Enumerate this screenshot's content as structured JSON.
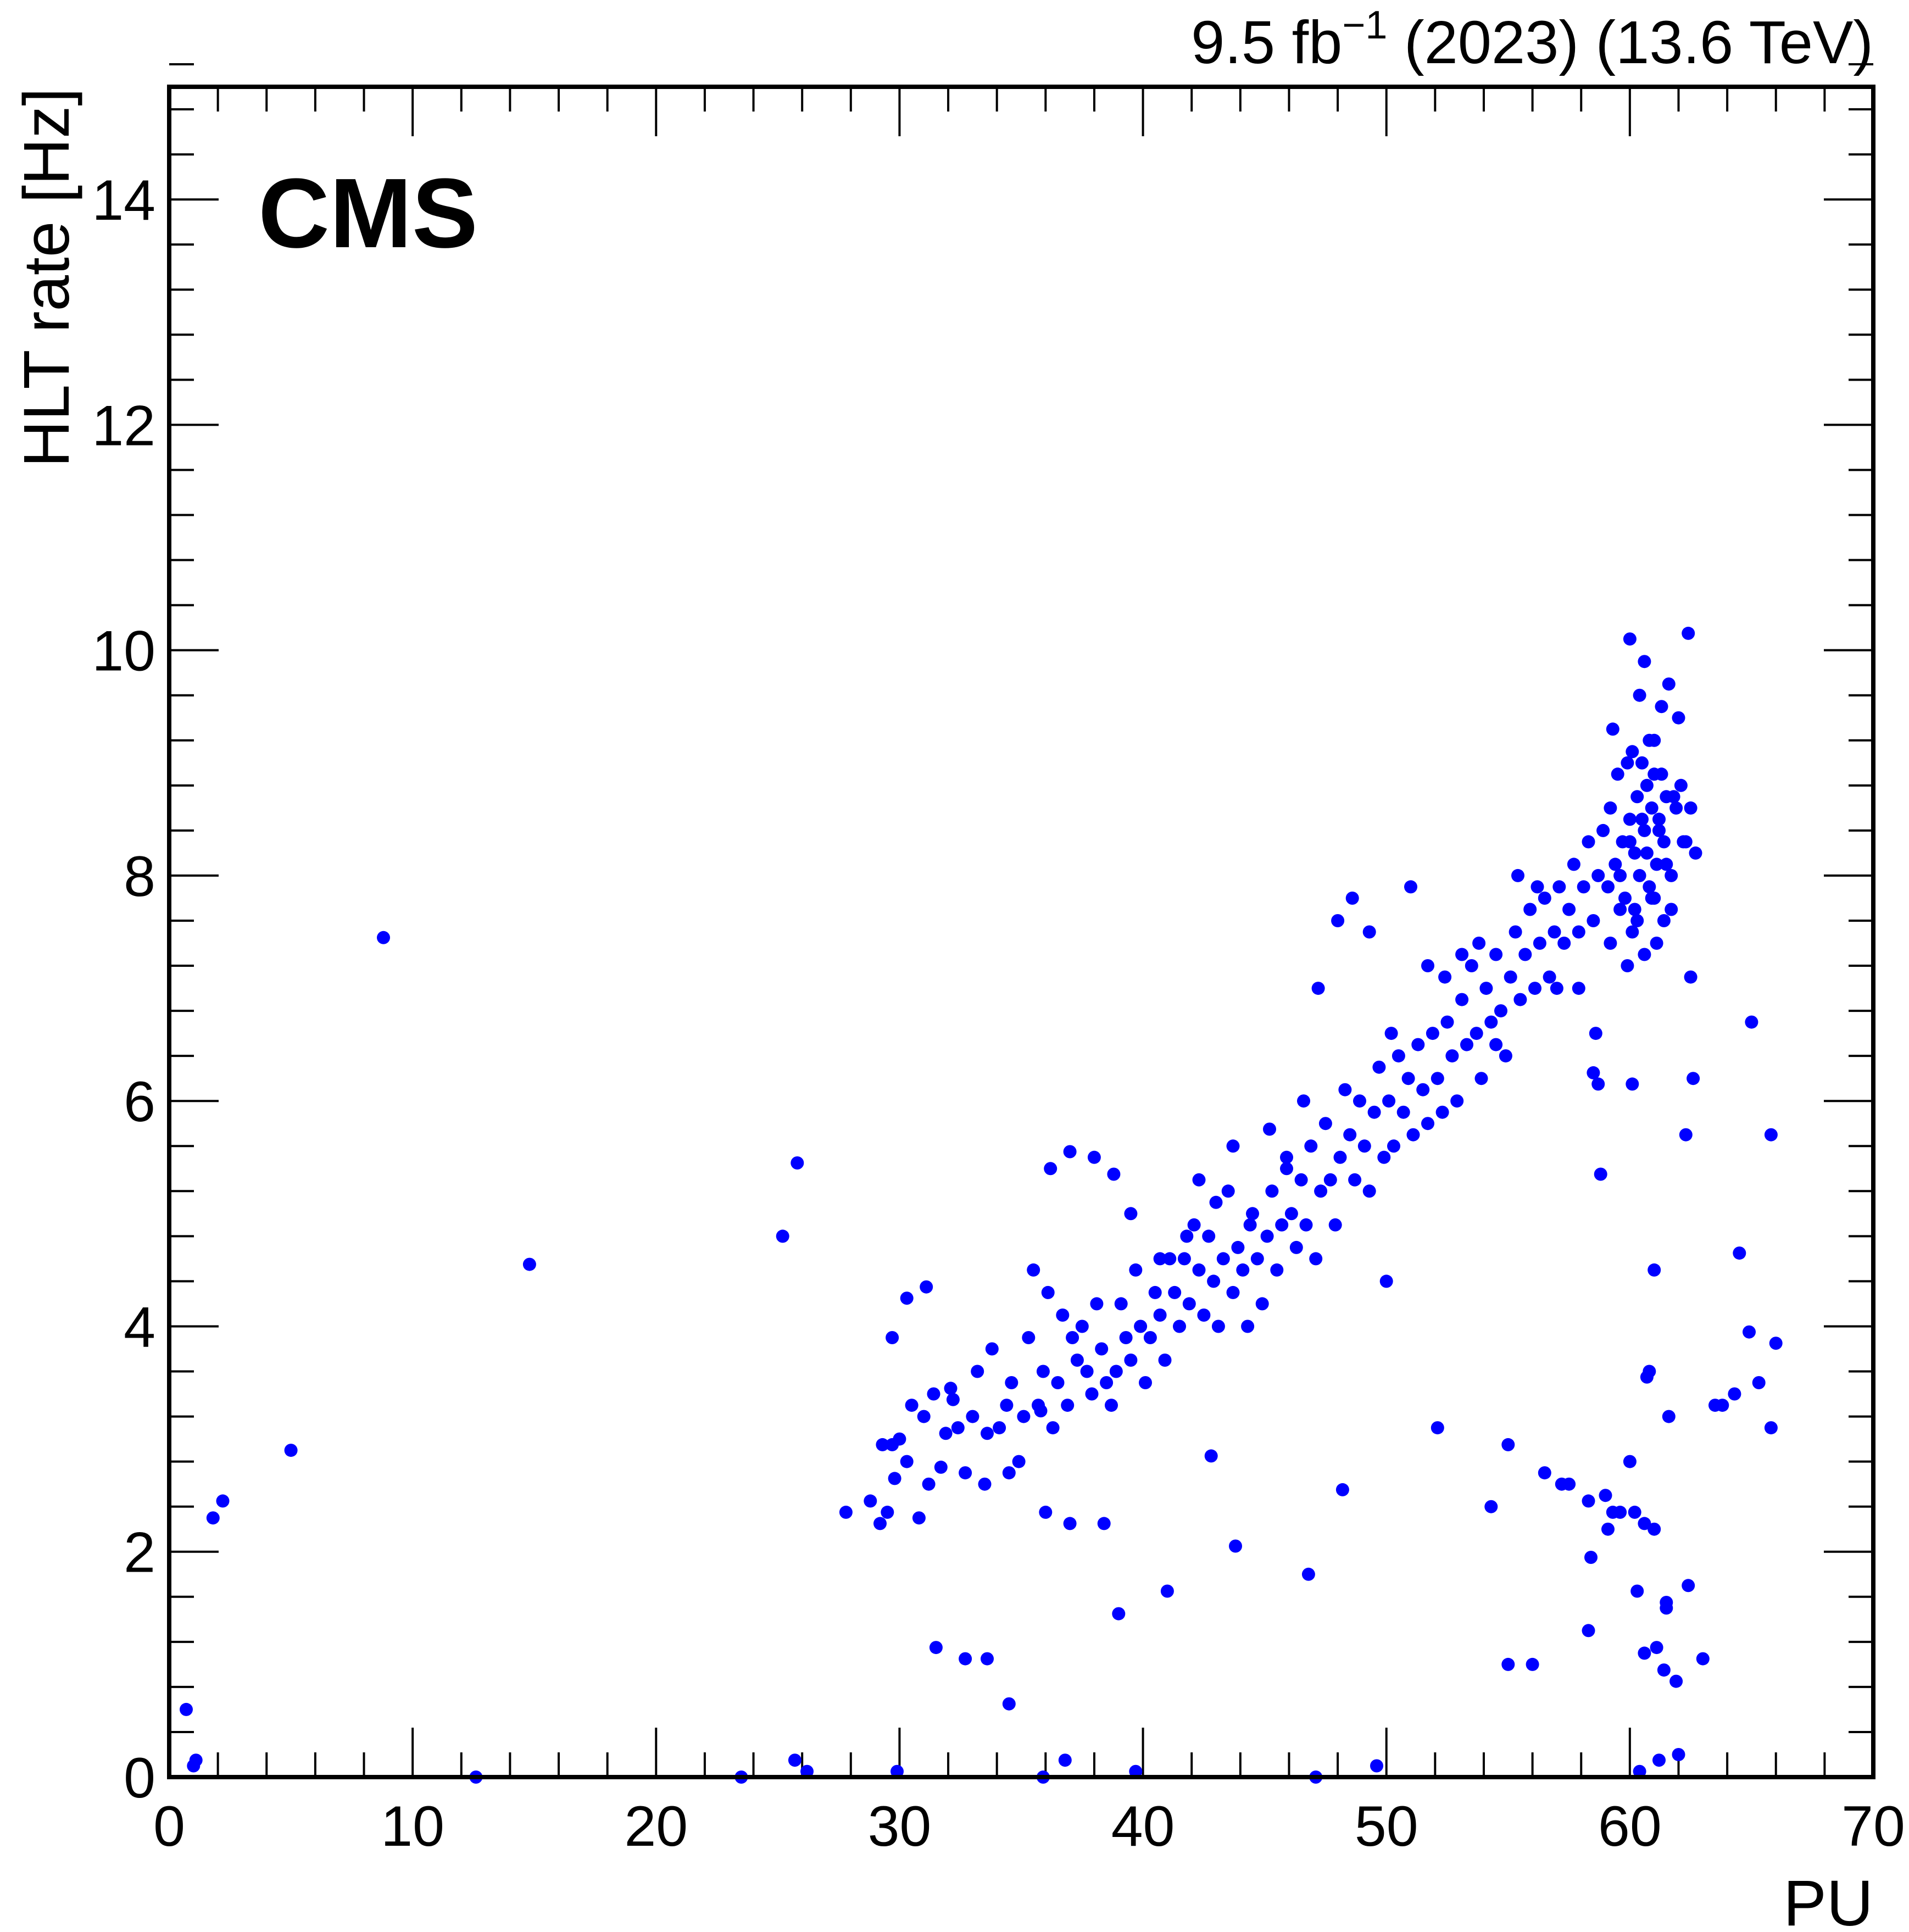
{
  "chart_data": {
    "type": "scatter",
    "experiment_label": "CMS",
    "lumi_label": {
      "main": "9.5 fb",
      "sup": "−1",
      "rest": " (2023) (13.6 TeV)"
    },
    "xlabel": "PU",
    "ylabel": "HLT rate [Hz]",
    "xlim": [
      0,
      70
    ],
    "ylim": [
      0,
      15
    ],
    "xticks": [
      0,
      10,
      20,
      30,
      40,
      50,
      60,
      70
    ],
    "yticks": [
      0,
      2,
      4,
      6,
      8,
      10,
      12,
      14
    ],
    "grid": false,
    "marker_color": "#0000ff",
    "series": [
      {
        "x": [
          0.7,
          1.0,
          1.1,
          1.8,
          2.2,
          5.0,
          8.8,
          14.8,
          25.2,
          25.8,
          27.8,
          28.8,
          29.2,
          29.3,
          29.5,
          29.7,
          29.8,
          30.0,
          30.3,
          30.5,
          30.8,
          31.0,
          31.2,
          31.4,
          31.7,
          31.9,
          32.1,
          32.4,
          32.7,
          33.0,
          33.2,
          33.5,
          33.8,
          34.1,
          34.4,
          34.6,
          34.9,
          35.1,
          35.3,
          35.5,
          35.7,
          35.9,
          36.1,
          36.3,
          36.5,
          36.7,
          36.9,
          37.1,
          37.3,
          37.5,
          37.7,
          37.9,
          38.1,
          38.3,
          38.5,
          38.7,
          38.9,
          39.1,
          39.3,
          39.5,
          39.7,
          39.9,
          40.1,
          40.3,
          40.5,
          40.7,
          40.9,
          41.1,
          41.3,
          41.5,
          41.7,
          41.9,
          42.1,
          42.3,
          42.5,
          42.7,
          42.9,
          43.1,
          43.3,
          43.5,
          43.7,
          43.9,
          44.1,
          44.3,
          44.5,
          44.7,
          44.9,
          45.1,
          45.3,
          45.5,
          45.7,
          45.9,
          46.1,
          46.3,
          46.5,
          46.7,
          46.9,
          47.1,
          47.3,
          47.5,
          47.7,
          47.9,
          48.1,
          48.3,
          48.5,
          48.7,
          48.9,
          49.1,
          49.3,
          49.5,
          49.7,
          49.9,
          50.1,
          50.3,
          50.5,
          50.7,
          50.9,
          51.1,
          51.3,
          51.5,
          51.7,
          51.9,
          52.1,
          52.3,
          52.5,
          52.7,
          52.9,
          53.1,
          53.3,
          53.5,
          53.7,
          53.9,
          54.1,
          54.3,
          54.5,
          54.7,
          54.9,
          55.1,
          55.3,
          55.5,
          55.7,
          55.9,
          56.1,
          56.3,
          56.5,
          56.7,
          56.9,
          57.1,
          57.3,
          57.5,
          57.7,
          57.9,
          58.1,
          58.3,
          58.5,
          58.7,
          58.9,
          59.1,
          59.2,
          59.4,
          59.5,
          59.7,
          59.8,
          60.0,
          60.1,
          60.2,
          60.3,
          60.4,
          60.5,
          60.6,
          60.7,
          60.8,
          60.9,
          61.0,
          61.1,
          61.2,
          61.3,
          61.4,
          61.5,
          61.7,
          61.9,
          62.1,
          62.3,
          62.5,
          62.7,
          59.3,
          59.9,
          60.0,
          60.4,
          60.6,
          60.8,
          61.0,
          61.3,
          61.6,
          62.0,
          62.4,
          59.6,
          60.0,
          60.2,
          60.5,
          60.7,
          61.0,
          61.2,
          61.5,
          61.8,
          62.2,
          59.2,
          59.6,
          59.9,
          60.1,
          60.3,
          60.6,
          60.9,
          61.1,
          61.4,
          61.7,
          29.7,
          30.3,
          31.1,
          32.2,
          33.6,
          34.5,
          35.8,
          36.2,
          37.0,
          38.0,
          38.8,
          39.5,
          40.7,
          41.8,
          42.3,
          43.0,
          43.7,
          44.4,
          45.2,
          45.9,
          46.6,
          47.2,
          48.0,
          48.6,
          49.3,
          50.2,
          51.0,
          51.7,
          52.4,
          53.1,
          53.8,
          54.5,
          55.4,
          56.2,
          57.0,
          57.9,
          58.6,
          31.5,
          32.7,
          33.6,
          34.5,
          36.0,
          37.0,
          38.4,
          39.0,
          41.0,
          42.8,
          43.8,
          46.8,
          48.2,
          50.0,
          52.1,
          54.3,
          55.0,
          56.5,
          57.2,
          58.3,
          59.0,
          60.3,
          60.6,
          61.1,
          61.5,
          62.4,
          63.0,
          63.8,
          64.3,
          64.9,
          65.3,
          65.8,
          66.0,
          58.4,
          58.8,
          59.1,
          59.3,
          59.6,
          60.0,
          60.2,
          60.6,
          60.7,
          61.0,
          61.4,
          61.6,
          61.9,
          62.3,
          62.6,
          12.6,
          23.5,
          25.7,
          26.2,
          29.9,
          35.9,
          36.8,
          39.7,
          47.1,
          49.6,
          60.4,
          61.2,
          62.0,
          55.0,
          56.0,
          57.5,
          58.3,
          58.5,
          58.7,
          60.1,
          60.8,
          61.0,
          61.5,
          62.5,
          63.5,
          65.0,
          64.5,
          65.8
        ],
        "y": [
          0.6,
          0.1,
          0.15,
          2.3,
          2.45,
          2.9,
          7.45,
          4.55,
          4.8,
          5.45,
          2.35,
          2.45,
          2.25,
          2.95,
          2.35,
          3.9,
          2.65,
          3.0,
          2.8,
          3.3,
          2.3,
          3.2,
          2.6,
          3.4,
          2.75,
          3.05,
          3.45,
          3.1,
          2.7,
          3.2,
          3.6,
          2.6,
          3.8,
          3.1,
          3.3,
          3.5,
          2.8,
          3.2,
          3.9,
          4.5,
          3.3,
          3.6,
          4.3,
          3.1,
          3.5,
          4.1,
          3.3,
          3.9,
          3.7,
          4.0,
          3.6,
          3.4,
          4.2,
          3.8,
          3.5,
          3.3,
          3.6,
          4.2,
          3.9,
          3.7,
          4.5,
          4.0,
          3.5,
          3.9,
          4.3,
          4.1,
          3.7,
          4.6,
          4.3,
          4.0,
          4.6,
          4.2,
          4.9,
          4.5,
          4.1,
          4.8,
          4.4,
          4.0,
          4.6,
          5.2,
          4.3,
          4.7,
          4.5,
          4.0,
          5.0,
          4.6,
          4.2,
          4.8,
          5.2,
          4.5,
          4.9,
          5.4,
          5.0,
          4.7,
          5.3,
          4.9,
          5.6,
          4.6,
          5.2,
          5.8,
          5.3,
          4.9,
          5.5,
          6.1,
          5.7,
          5.3,
          6.0,
          5.6,
          5.2,
          5.9,
          6.3,
          5.5,
          6.0,
          5.6,
          6.4,
          5.9,
          6.2,
          5.7,
          6.5,
          6.1,
          5.8,
          6.6,
          6.2,
          5.9,
          6.7,
          6.4,
          6.0,
          6.9,
          6.5,
          7.2,
          6.6,
          6.2,
          7.0,
          6.7,
          7.3,
          6.8,
          6.4,
          7.1,
          7.5,
          6.9,
          7.3,
          7.7,
          7.0,
          7.4,
          7.8,
          7.1,
          7.5,
          7.9,
          7.4,
          7.7,
          8.1,
          7.5,
          7.9,
          8.3,
          7.6,
          8.0,
          8.4,
          7.9,
          8.6,
          8.1,
          8.9,
          8.3,
          7.8,
          8.5,
          9.1,
          8.2,
          8.7,
          8.0,
          9.0,
          8.4,
          8.8,
          7.9,
          8.6,
          9.2,
          8.1,
          8.5,
          8.9,
          8.3,
          8.7,
          8.0,
          8.6,
          8.8,
          8.3,
          8.6,
          8.2,
          9.3,
          9.0,
          10.1,
          9.6,
          9.9,
          9.2,
          8.9,
          9.5,
          9.7,
          9.4,
          10.15,
          8.0,
          8.3,
          7.7,
          8.5,
          8.2,
          7.8,
          8.4,
          8.1,
          8.7,
          8.3,
          7.4,
          7.7,
          7.2,
          7.5,
          7.6,
          7.3,
          7.8,
          7.4,
          7.6,
          7.7,
          2.95,
          4.25,
          4.35,
          3.35,
          3.05,
          2.7,
          3.25,
          5.4,
          5.55,
          5.5,
          5.35,
          5.0,
          4.6,
          4.8,
          5.3,
          5.1,
          5.6,
          4.9,
          5.75,
          5.5,
          6.0,
          7.0,
          7.6,
          7.8,
          7.5,
          6.6,
          7.9,
          7.2,
          7.1,
          7.3,
          7.4,
          6.5,
          8.0,
          7.9,
          7.0,
          7.0,
          6.6,
          1.15,
          1.05,
          1.05,
          0.65,
          2.35,
          2.25,
          2.25,
          1.45,
          1.65,
          2.85,
          2.05,
          1.8,
          2.55,
          4.4,
          3.1,
          2.4,
          1.0,
          2.7,
          2.6,
          1.3,
          2.5,
          1.65,
          1.1,
          1.15,
          1.55,
          1.7,
          1.05,
          3.3,
          3.4,
          3.95,
          3.5,
          3.1,
          3.85,
          1.95,
          5.35,
          2.2,
          2.35,
          2.35,
          2.8,
          2.35,
          2.25,
          3.55,
          4.5,
          0.95,
          3.2,
          0.85,
          5.7,
          6.2,
          0.0,
          0.0,
          0.15,
          0.05,
          0.05,
          0.0,
          0.15,
          0.05,
          0.0,
          0.1,
          0.05,
          0.15,
          0.2,
          2.95,
          1.0,
          2.6,
          2.45,
          6.25,
          6.15,
          6.15,
          3.6,
          2.2,
          1.5,
          7.1,
          3.3,
          6.7,
          4.65,
          5.7
        ]
      }
    ]
  }
}
